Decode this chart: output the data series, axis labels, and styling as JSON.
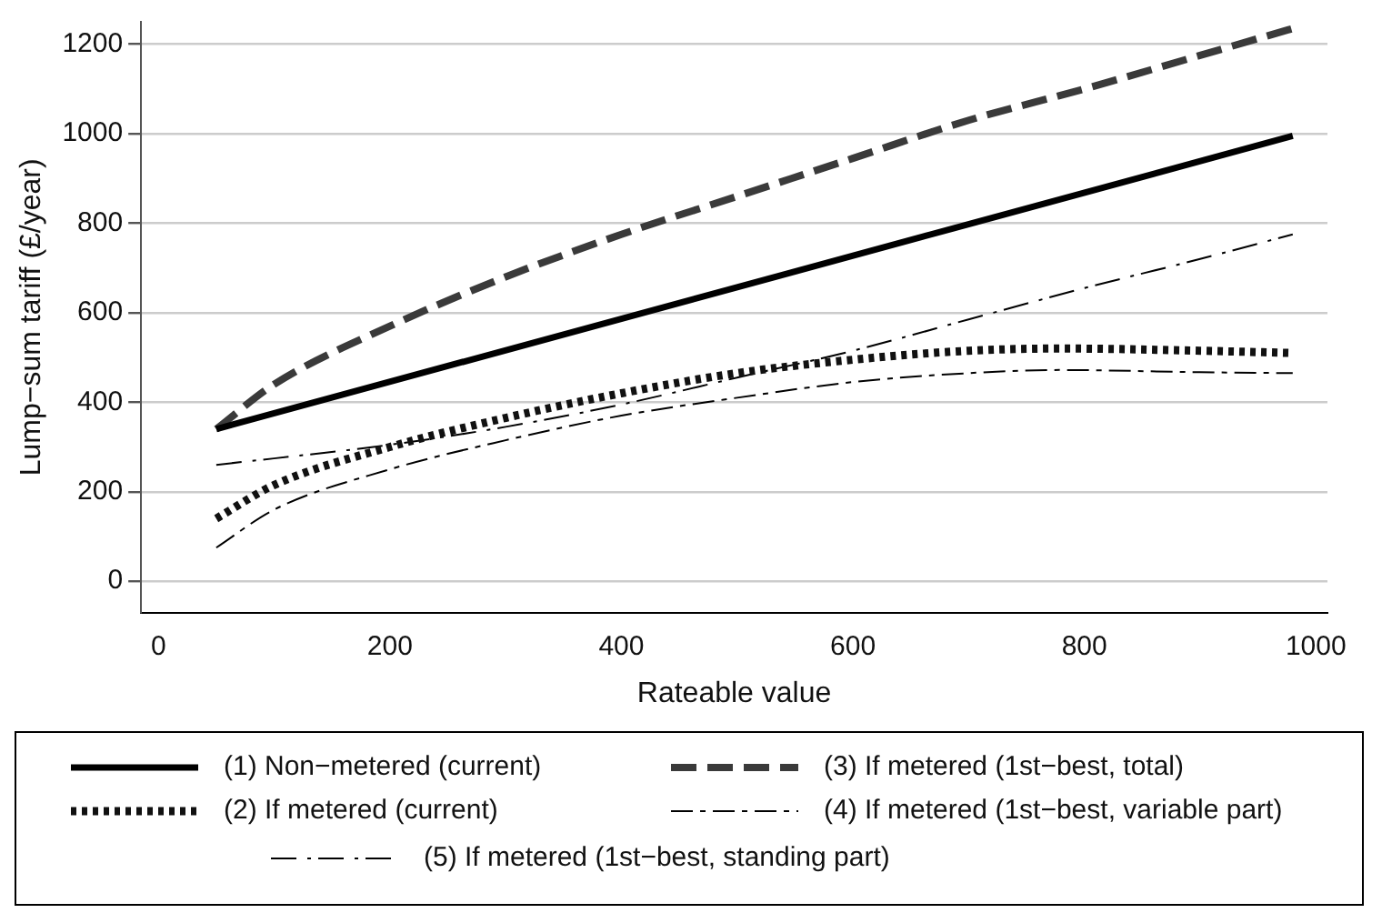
{
  "chart_data": {
    "type": "line",
    "xlabel": "Rateable value",
    "ylabel": "Lump−sum tariff (£/year)",
    "xlim": [
      -15,
      1010
    ],
    "xticks": [
      0,
      200,
      400,
      600,
      800,
      1000
    ],
    "ylim": [
      -70,
      1250
    ],
    "yticks": [
      0,
      200,
      400,
      600,
      800,
      1000,
      1200
    ],
    "grid": "y",
    "legend": "bottom",
    "marker": "none",
    "series": [
      {
        "name": "(1) Non−metered (current)",
        "color": "#000000",
        "line_style": "solid",
        "x": [
          50,
          980
        ],
        "values": [
          340,
          995
        ]
      },
      {
        "name": "(3) If metered (1st−best, total)",
        "color": "#3a3a3a",
        "line_style": "dashed",
        "x": [
          50,
          100,
          200,
          300,
          400,
          500,
          600,
          700,
          800,
          900,
          980
        ],
        "values": [
          340,
          440,
          570,
          680,
          775,
          860,
          945,
          1030,
          1100,
          1175,
          1235
        ]
      },
      {
        "name": "(2) If metered (current)",
        "color": "#111111",
        "line_style": "dotted",
        "x": [
          50,
          100,
          200,
          300,
          400,
          500,
          600,
          700,
          780,
          900,
          980
        ],
        "values": [
          140,
          215,
          300,
          365,
          420,
          465,
          495,
          515,
          520,
          515,
          510
        ]
      },
      {
        "name": "(4) If metered (1st−best, variable part)",
        "color": "#000000",
        "line_style": "dashed",
        "x": [
          50,
          100,
          200,
          300,
          400,
          500,
          600,
          700,
          780,
          900,
          980
        ],
        "values": [
          75,
          160,
          250,
          315,
          370,
          410,
          445,
          465,
          472,
          467,
          465
        ]
      },
      {
        "name": "(5) If metered (1st−best, standing part)",
        "color": "#000000",
        "line_style": "dashed",
        "x": [
          50,
          200,
          300,
          400,
          500,
          600,
          700,
          800,
          900,
          980
        ],
        "values": [
          260,
          305,
          345,
          395,
          455,
          515,
          585,
          655,
          720,
          775
        ]
      }
    ]
  }
}
